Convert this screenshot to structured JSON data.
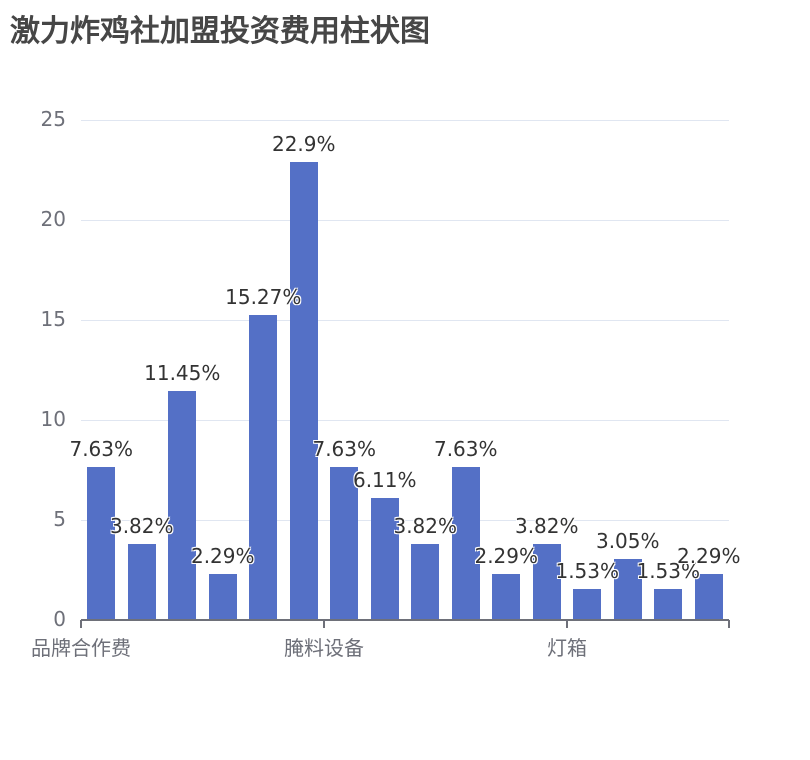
{
  "chart_data": {
    "type": "bar",
    "title": "激力炸鸡社加盟投资费用柱状图",
    "xlabel": "",
    "ylabel": "",
    "ylim": [
      0,
      25
    ],
    "yticks": [
      0,
      5,
      10,
      15,
      20,
      25
    ],
    "grid": true,
    "bar_color": "#5470c6",
    "visible_x_tick_labels": [
      {
        "index": 0,
        "label": "品牌合作费"
      },
      {
        "index": 6,
        "label": "腌料设备"
      },
      {
        "index": 12,
        "label": "灯箱"
      }
    ],
    "categories": [
      "品牌合作费",
      "",
      "",
      "",
      "",
      "",
      "腌料设备",
      "",
      "",
      "",
      "",
      "",
      "灯箱",
      "",
      "",
      ""
    ],
    "values": [
      7.63,
      3.82,
      11.45,
      2.29,
      15.27,
      22.9,
      7.63,
      6.11,
      3.82,
      7.63,
      2.29,
      3.82,
      1.53,
      3.05,
      1.53,
      2.29
    ],
    "labels": [
      "7.63%",
      "3.82%",
      "11.45%",
      "2.29%",
      "15.27%",
      "22.9%",
      "7.63%",
      "6.11%",
      "3.82%",
      "7.63%",
      "2.29%",
      "3.82%",
      "1.53%",
      "3.05%",
      "1.53%",
      "2.29%"
    ]
  },
  "yaxis": {
    "ticks": [
      "0",
      "5",
      "10",
      "15",
      "20",
      "25"
    ]
  },
  "xaxis": {
    "labels": [
      "品牌合作费",
      "腌料设备",
      "灯箱"
    ]
  }
}
